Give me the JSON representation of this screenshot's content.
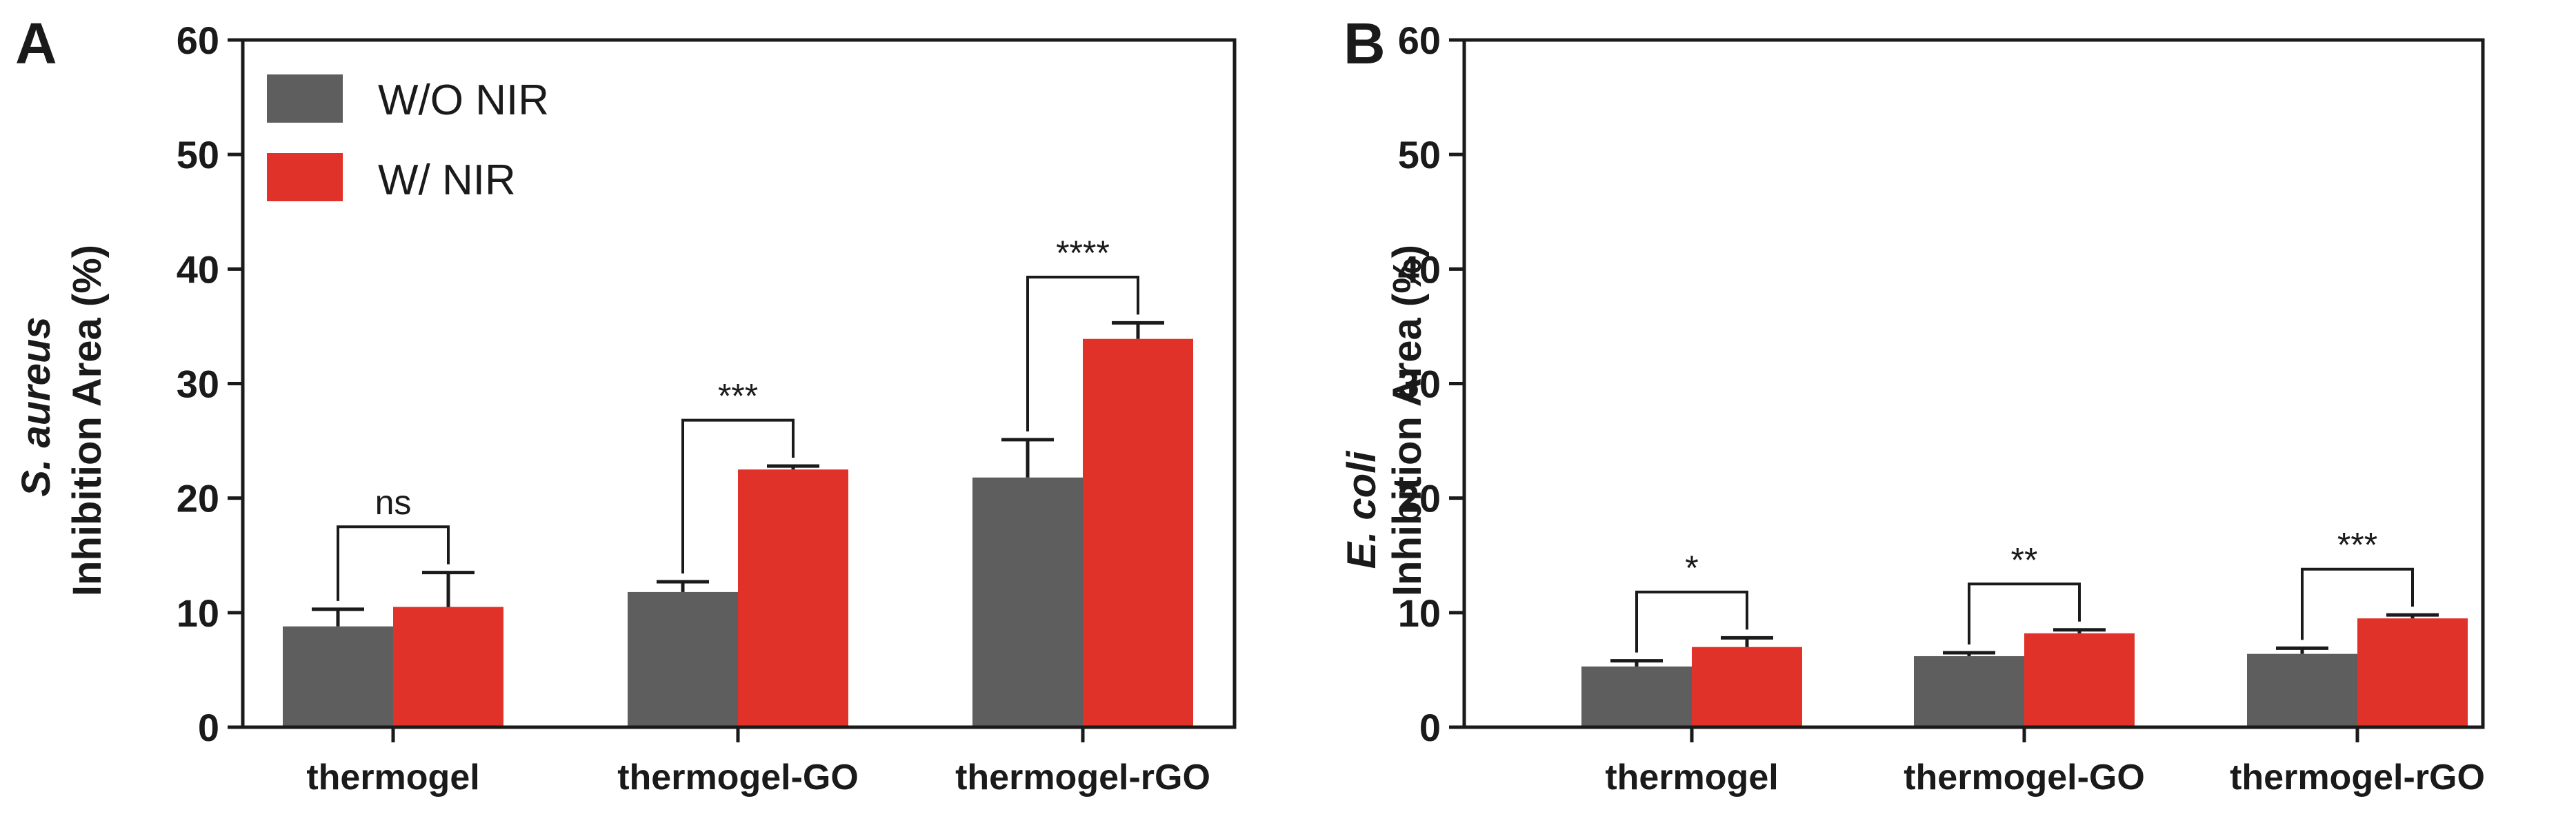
{
  "colors": {
    "wo_nir": "#5e5e5e",
    "w_nir": "#e03228",
    "axis": "#1a1a1a"
  },
  "legend": [
    {
      "name": "W/O NIR",
      "color": "#5e5e5e"
    },
    {
      "name": "W/ NIR",
      "color": "#e03228"
    }
  ],
  "chart_data": [
    {
      "type": "bar",
      "panel": "A",
      "ylabel_italic": "S. aureus",
      "ylabel": "Inhibition Area (%)",
      "xlabel": "",
      "ylim": [
        0,
        60
      ],
      "yticks": [
        0,
        10,
        20,
        30,
        40,
        50,
        60
      ],
      "categories": [
        "thermogel",
        "thermogel-GO",
        "thermogel-rGO"
      ],
      "series": [
        {
          "name": "W/O NIR",
          "values": [
            8.8,
            11.8,
            21.8
          ],
          "errors": [
            1.5,
            0.9,
            3.3
          ]
        },
        {
          "name": "W/ NIR",
          "values": [
            10.5,
            22.5,
            33.9
          ],
          "errors": [
            3.0,
            0.3,
            1.4
          ]
        }
      ],
      "significance": [
        "ns",
        "***",
        "****"
      ],
      "legend_position": "top-left"
    },
    {
      "type": "bar",
      "panel": "B",
      "ylabel_italic": "E. coli",
      "ylabel": "Inhibition Area (%)",
      "xlabel": "",
      "ylim": [
        0,
        60
      ],
      "yticks": [
        0,
        10,
        20,
        30,
        40,
        50,
        60
      ],
      "categories": [
        "thermogel",
        "thermogel-GO",
        "thermogel-rGO"
      ],
      "series": [
        {
          "name": "W/O NIR",
          "values": [
            5.3,
            6.2,
            6.4
          ],
          "errors": [
            0.5,
            0.3,
            0.5
          ]
        },
        {
          "name": "W/ NIR",
          "values": [
            7.0,
            8.2,
            9.5
          ],
          "errors": [
            0.8,
            0.3,
            0.3
          ]
        }
      ],
      "significance": [
        "*",
        "**",
        "***"
      ]
    }
  ]
}
